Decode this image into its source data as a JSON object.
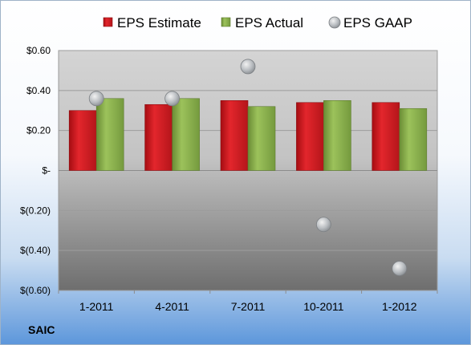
{
  "company": "SAIC",
  "colors": {
    "estimate": "#d71a1f",
    "actual": "#88b04b",
    "gaap": "#b8bcc0"
  },
  "chart_data": {
    "type": "bar",
    "categories": [
      "1-2011",
      "4-2011",
      "7-2011",
      "10-2011",
      "1-2012"
    ],
    "series": [
      {
        "name": "EPS Estimate",
        "kind": "bar",
        "values": [
          0.3,
          0.33,
          0.35,
          0.34,
          0.34
        ]
      },
      {
        "name": "EPS Actual",
        "kind": "bar",
        "values": [
          0.36,
          0.36,
          0.32,
          0.35,
          0.31
        ]
      },
      {
        "name": "EPS GAAP",
        "kind": "scatter",
        "values": [
          0.36,
          0.36,
          0.52,
          -0.27,
          -0.49
        ]
      }
    ],
    "ylim": [
      -0.6,
      0.6
    ],
    "yticks": [
      0.6,
      0.4,
      0.2,
      0,
      -0.2,
      -0.4,
      -0.6
    ],
    "ytick_labels": [
      "$0.60",
      "$0.40",
      "$0.20",
      "$-",
      "$(0.20)",
      "$(0.40)",
      "$(0.60)"
    ],
    "grid": true,
    "legend_position": "top"
  }
}
